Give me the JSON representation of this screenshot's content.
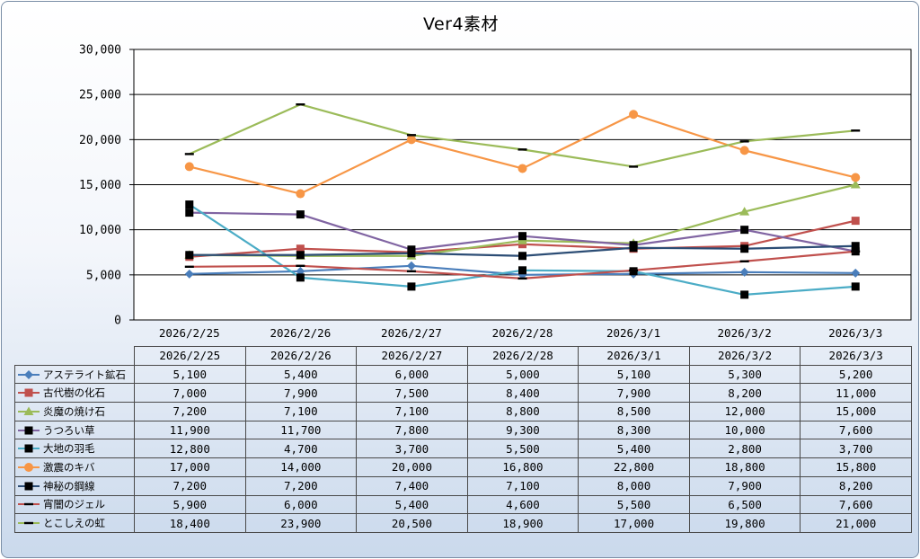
{
  "chart_data": {
    "type": "line",
    "title": "Ver4素材",
    "categories": [
      "2026/2/25",
      "2026/2/26",
      "2026/2/27",
      "2026/2/28",
      "2026/3/1",
      "2026/3/2",
      "2026/3/3"
    ],
    "ylim": [
      0,
      30000
    ],
    "yticks": [
      "0",
      "5,000",
      "10,000",
      "15,000",
      "20,000",
      "25,000",
      "30,000"
    ],
    "grid": true,
    "legend": "data-table",
    "series": [
      {
        "name": "アステライト鉱石",
        "color": "#4a7ebb",
        "marker": "diamond",
        "values": [
          5100,
          5400,
          6000,
          5000,
          5100,
          5300,
          5200
        ],
        "labels": [
          "5,100",
          "5,400",
          "6,000",
          "5,000",
          "5,100",
          "5,300",
          "5,200"
        ]
      },
      {
        "name": "古代樹の化石",
        "color": "#c0504d",
        "marker": "square",
        "values": [
          7000,
          7900,
          7500,
          8400,
          7900,
          8200,
          11000
        ],
        "labels": [
          "7,000",
          "7,900",
          "7,500",
          "8,400",
          "7,900",
          "8,200",
          "11,000"
        ]
      },
      {
        "name": "炎魔の焼け石",
        "color": "#9bbb59",
        "marker": "triangle",
        "values": [
          7200,
          7100,
          7100,
          8800,
          8500,
          12000,
          15000
        ],
        "labels": [
          "7,200",
          "7,100",
          "7,100",
          "8,800",
          "8,500",
          "12,000",
          "15,000"
        ]
      },
      {
        "name": "うつろい草",
        "color": "#8064a2",
        "marker": "blacksquare",
        "values": [
          11900,
          11700,
          7800,
          9300,
          8300,
          10000,
          7600
        ],
        "labels": [
          "11,900",
          "11,700",
          "7,800",
          "9,300",
          "8,300",
          "10,000",
          "7,600"
        ]
      },
      {
        "name": "大地の羽毛",
        "color": "#4bacc6",
        "marker": "blacksquare",
        "values": [
          12800,
          4700,
          3700,
          5500,
          5400,
          2800,
          3700
        ],
        "labels": [
          "12,800",
          "4,700",
          "3,700",
          "5,500",
          "5,400",
          "2,800",
          "3,700"
        ]
      },
      {
        "name": "激震のキバ",
        "color": "#f79646",
        "marker": "circle",
        "values": [
          17000,
          14000,
          20000,
          16800,
          22800,
          18800,
          15800
        ],
        "labels": [
          "17,000",
          "14,000",
          "20,000",
          "16,800",
          "22,800",
          "18,800",
          "15,800"
        ]
      },
      {
        "name": "神秘の鋼線",
        "color": "#2c4d75",
        "marker": "blacksquare",
        "values": [
          7200,
          7200,
          7400,
          7100,
          8000,
          7900,
          8200
        ],
        "labels": [
          "7,200",
          "7,200",
          "7,400",
          "7,100",
          "8,000",
          "7,900",
          "8,200"
        ]
      },
      {
        "name": "宵闇のジェル",
        "color": "#c0504d",
        "marker": "dash",
        "values": [
          5900,
          6000,
          5400,
          4600,
          5500,
          6500,
          7600
        ],
        "labels": [
          "5,900",
          "6,000",
          "5,400",
          "4,600",
          "5,500",
          "6,500",
          "7,600"
        ]
      },
      {
        "name": "とこしえの虹",
        "color": "#9bbb59",
        "marker": "dash",
        "values": [
          18400,
          23900,
          20500,
          18900,
          17000,
          19800,
          21000
        ],
        "labels": [
          "18,400",
          "23,900",
          "20,500",
          "18,900",
          "17,000",
          "19,800",
          "21,000"
        ]
      }
    ]
  }
}
